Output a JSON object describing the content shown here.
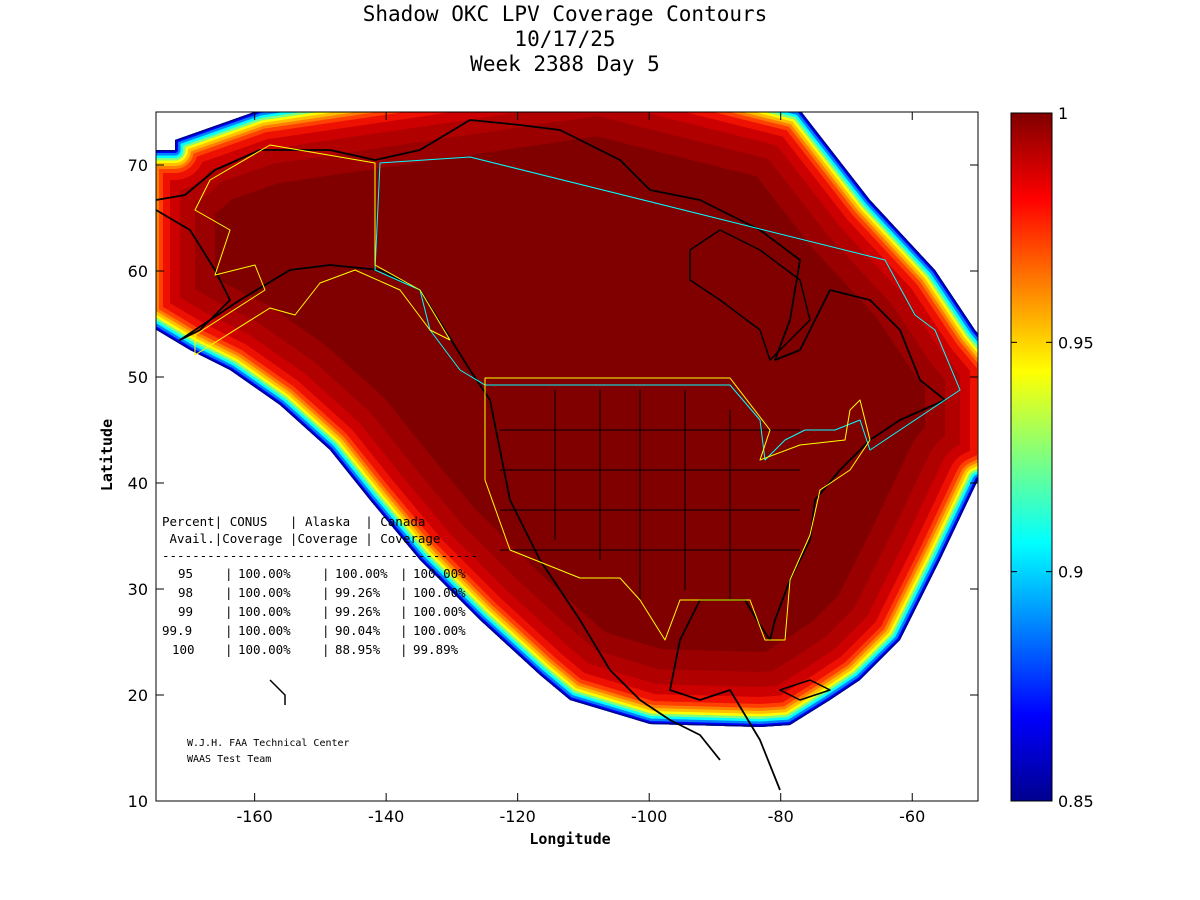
{
  "chart_data": {
    "type": "heatmap",
    "title": [
      "Shadow OKC LPV Coverage Contours",
      "10/17/25",
      "Week 2388 Day 5"
    ],
    "xlabel": "Longitude",
    "ylabel": "Latitude",
    "xlim": [
      -175,
      -50
    ],
    "ylim": [
      10,
      75
    ],
    "xticks": [
      -160,
      -140,
      -120,
      -100,
      -80,
      -60
    ],
    "yticks": [
      10,
      20,
      30,
      40,
      50,
      60,
      70
    ],
    "colorbar": {
      "range": [
        0.85,
        1
      ],
      "ticks": [
        "1",
        "0.95",
        "0.9",
        "0.85"
      ],
      "colormap": "jet"
    },
    "table": {
      "header1": "Percent| CONUS   | Alaska  | Canada",
      "header2": " Avail.|Coverage |Coverage | Coverage",
      "divider": "------------------------------------------",
      "rows": [
        {
          "avail": "95",
          "conus": "100.00%",
          "alaska": "100.00%",
          "canada": "100.00%"
        },
        {
          "avail": "98",
          "conus": "100.00%",
          "alaska": "99.26%",
          "canada": "100.00%"
        },
        {
          "avail": "99",
          "conus": "100.00%",
          "alaska": "99.26%",
          "canada": "100.00%"
        },
        {
          "avail": "99.9",
          "conus": "100.00%",
          "alaska": "90.04%",
          "canada": "100.00%"
        },
        {
          "avail": "100",
          "conus": "100.00%",
          "alaska": "88.95%",
          "canada": "99.89%"
        }
      ]
    },
    "credit": [
      "W.J.H. FAA Technical Center",
      "WAAS Test Team"
    ]
  }
}
